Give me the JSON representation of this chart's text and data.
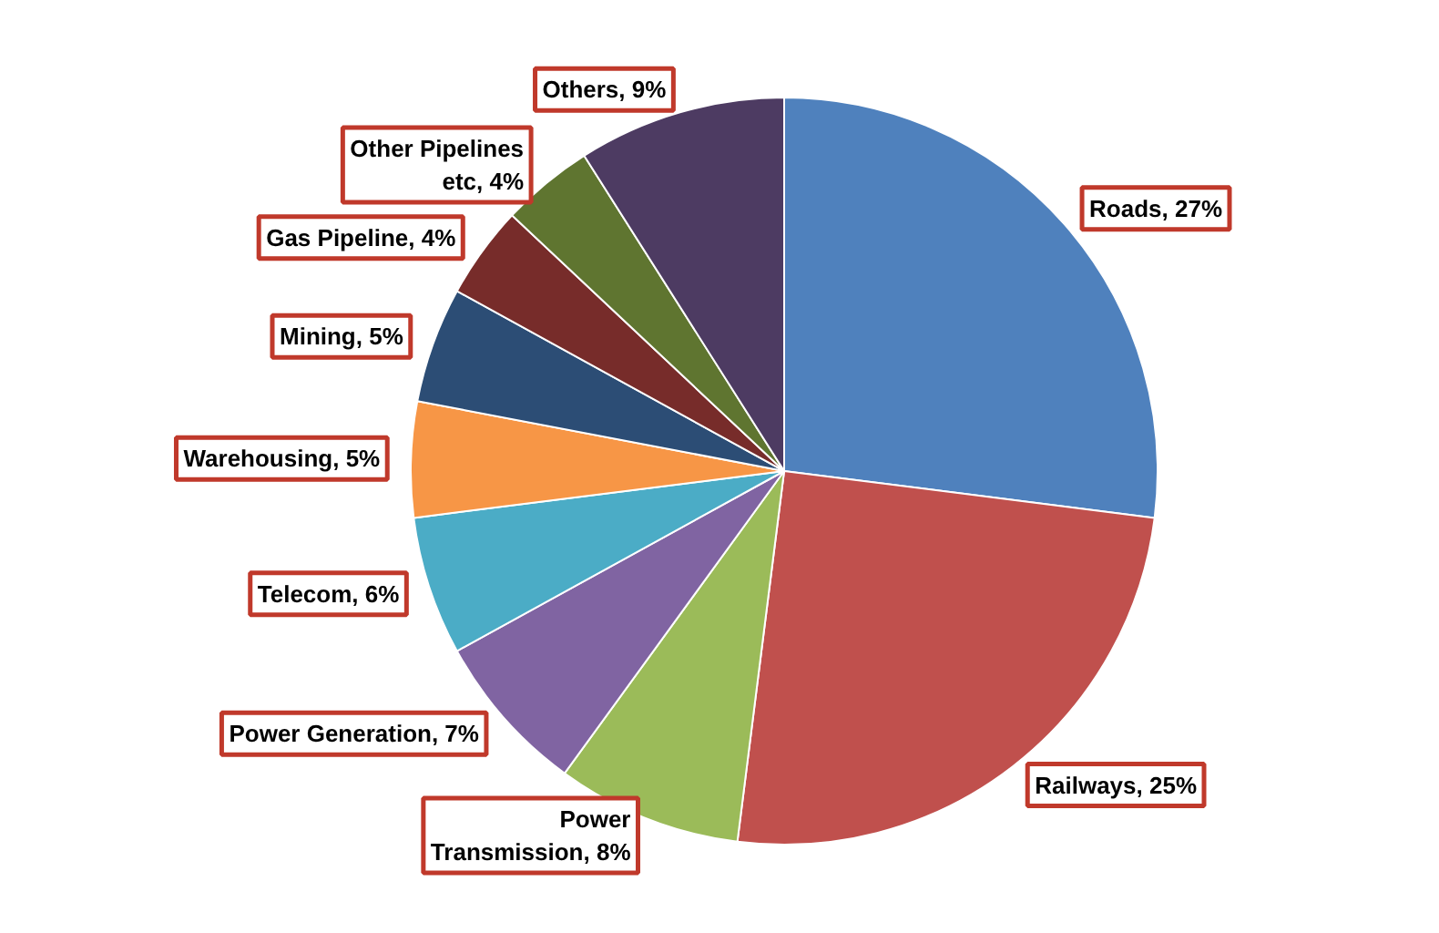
{
  "chart_data": {
    "type": "pie",
    "categories": [
      "Roads",
      "Railways",
      "Power\nTransmission",
      "Power Generation",
      "Telecom",
      "Warehousing",
      "Mining",
      "Gas Pipeline",
      "Other Pipelines\netc",
      "Others"
    ],
    "values": [
      27,
      25,
      8,
      7,
      6,
      5,
      5,
      4,
      4,
      9
    ],
    "value_labels": [
      "27%",
      "25%",
      "8%",
      "7%",
      "6%",
      "5%",
      "5%",
      "4%",
      "4%",
      "9%"
    ],
    "colors": [
      "#4f81bd",
      "#c0504d",
      "#9bbb59",
      "#8064a2",
      "#4bacc6",
      "#f79646",
      "#2c4d75",
      "#772c2a",
      "#5f7530",
      "#4d3b62"
    ]
  }
}
